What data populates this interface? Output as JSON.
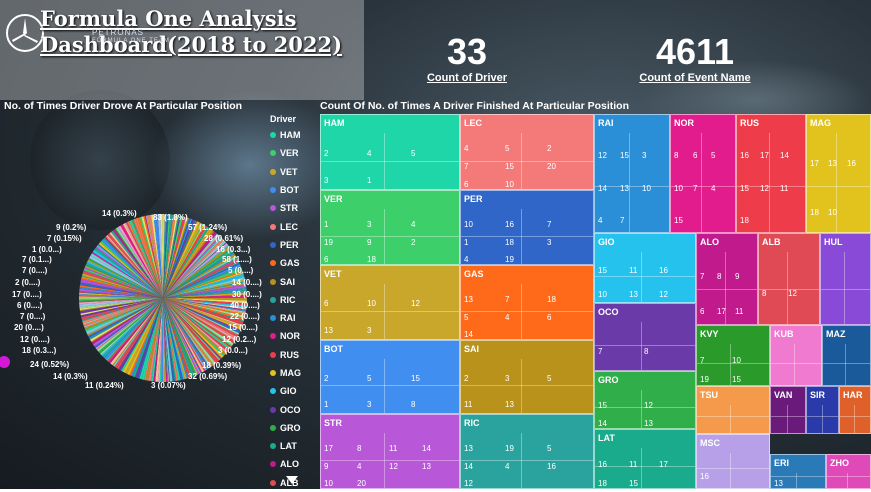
{
  "header": {
    "title": "Formula One Analysis Dashboard(2018 to 2022)",
    "logo_text_1": "PETRONAS",
    "logo_text_2": "FORMULA ONE TEAM"
  },
  "kpis": [
    {
      "value": "33",
      "label": "Count of Driver"
    },
    {
      "value": "4611",
      "label": "Count of Event Name"
    }
  ],
  "pie": {
    "title": "No. of Times Driver Drove At Particular Position",
    "labels": [
      "14 (0.3%)",
      "83 (1.8%)",
      "9 (0.2%)",
      "57 (1.24%)",
      "7 (0.15%)",
      "28 (0.61%)",
      "1 (0.0...)",
      "16 (0.3...)",
      "7 (0.1...)",
      "58 (1....)",
      "7 (0....)",
      "5 (0....)",
      "2 (0....)",
      "14 (0....)",
      "17 (0....)",
      "30 (0....)",
      "6 (0....)",
      "40 (0....)",
      "7 (0....)",
      "22 (0....)",
      "20 (0....)",
      "15 (0....)",
      "12 (0....)",
      "12 (0.2...)",
      "18 (0.3...)",
      "3 (0.0...)",
      "24 (0.52%)",
      "18 (0.39%)",
      "14 (0.3%)",
      "32 (0.69%)",
      "11 (0.24%)",
      "3 (0.07%)"
    ]
  },
  "legend": {
    "title": "Driver",
    "items": [
      {
        "name": "HAM",
        "color": "#1fd6a8"
      },
      {
        "name": "VER",
        "color": "#3ccf6a"
      },
      {
        "name": "VET",
        "color": "#c9a72a"
      },
      {
        "name": "BOT",
        "color": "#3f8ef0"
      },
      {
        "name": "STR",
        "color": "#b857d8"
      },
      {
        "name": "LEC",
        "color": "#f47a7a"
      },
      {
        "name": "PER",
        "color": "#2f66c8"
      },
      {
        "name": "GAS",
        "color": "#ff6a1a"
      },
      {
        "name": "SAI",
        "color": "#b8921a"
      },
      {
        "name": "RIC",
        "color": "#2aa39e"
      },
      {
        "name": "RAI",
        "color": "#2b8fd8"
      },
      {
        "name": "NOR",
        "color": "#e21c8c"
      },
      {
        "name": "RUS",
        "color": "#ee3c4a"
      },
      {
        "name": "MAG",
        "color": "#e2c21c"
      },
      {
        "name": "GIO",
        "color": "#25c2ee"
      },
      {
        "name": "OCO",
        "color": "#6a3aa8"
      },
      {
        "name": "GRO",
        "color": "#2fae4a"
      },
      {
        "name": "LAT",
        "color": "#1aab8c"
      },
      {
        "name": "ALO",
        "color": "#c01a8c"
      },
      {
        "name": "ALB",
        "color": "#e04a55"
      }
    ]
  },
  "treemap": {
    "title": "Count Of No. of Times A Driver Finished At Particular Position",
    "tiles": [
      {
        "name": "HAM",
        "color": "#1fd6a8",
        "nums": [
          "2",
          "4",
          "5",
          "3",
          "1"
        ]
      },
      {
        "name": "LEC",
        "color": "#f47a7a",
        "nums": [
          "4",
          "5",
          "2",
          "7",
          "15",
          "20",
          "6",
          "10"
        ]
      },
      {
        "name": "RAI",
        "color": "#2b8fd8",
        "nums": [
          "12",
          "15",
          "3",
          "14",
          "13",
          "10",
          "4",
          "7"
        ]
      },
      {
        "name": "NOR",
        "color": "#e21c8c",
        "nums": [
          "8",
          "6",
          "5",
          "10",
          "7",
          "4",
          "15"
        ]
      },
      {
        "name": "RUS",
        "color": "#ee3c4a",
        "nums": [
          "16",
          "17",
          "14",
          "15",
          "12",
          "11",
          "18"
        ]
      },
      {
        "name": "MAG",
        "color": "#e2c21c",
        "nums": [
          "17",
          "13",
          "16",
          "18",
          "10"
        ]
      },
      {
        "name": "VER",
        "color": "#3ccf6a",
        "nums": [
          "1",
          "3",
          "4",
          "19",
          "9",
          "2",
          "6",
          "18"
        ]
      },
      {
        "name": "PER",
        "color": "#2f66c8",
        "nums": [
          "10",
          "16",
          "7",
          "1",
          "18",
          "3",
          "4",
          "19"
        ]
      },
      {
        "name": "GIO",
        "color": "#25c2ee",
        "nums": [
          "15",
          "11",
          "16",
          "10",
          "13",
          "12"
        ]
      },
      {
        "name": "ALO",
        "color": "#c01a8c",
        "nums": [
          "7",
          "8",
          "9",
          "6",
          "17",
          "11"
        ]
      },
      {
        "name": "ALB",
        "color": "#e04a55",
        "nums": [
          "8",
          "12"
        ]
      },
      {
        "name": "HUL",
        "color": "#8a4ad8",
        "nums": []
      },
      {
        "name": "VET",
        "color": "#c9a72a",
        "nums": [
          "6",
          "10",
          "12",
          "13",
          "3"
        ]
      },
      {
        "name": "GAS",
        "color": "#ff6a1a",
        "nums": [
          "13",
          "7",
          "18",
          "5",
          "4",
          "6",
          "14"
        ]
      },
      {
        "name": "OCO",
        "color": "#6a3aa8",
        "nums": [
          "7",
          "8"
        ]
      },
      {
        "name": "KVY",
        "color": "#2a9a2a",
        "nums": [
          "7",
          "10",
          "19",
          "15"
        ]
      },
      {
        "name": "KUB",
        "color": "#f07ad0",
        "nums": []
      },
      {
        "name": "MAZ",
        "color": "#1a5a9a",
        "nums": []
      },
      {
        "name": "BOT",
        "color": "#3f8ef0",
        "nums": [
          "2",
          "5",
          "15",
          "1",
          "3",
          "8"
        ]
      },
      {
        "name": "SAI",
        "color": "#b8921a",
        "nums": [
          "2",
          "3",
          "5",
          "11",
          "13"
        ]
      },
      {
        "name": "GRO",
        "color": "#2fae4a",
        "nums": [
          "15",
          "12",
          "14",
          "13"
        ]
      },
      {
        "name": "TSU",
        "color": "#f59a4a",
        "nums": []
      },
      {
        "name": "VAN",
        "color": "#6a1a7a",
        "nums": []
      },
      {
        "name": "SIR",
        "color": "#2a3aa8",
        "nums": []
      },
      {
        "name": "HAR",
        "color": "#e0602a",
        "nums": []
      },
      {
        "name": "STR",
        "color": "#b857d8",
        "nums": [
          "17",
          "8",
          "11",
          "14",
          "9",
          "4",
          "12",
          "13",
          "10",
          "20"
        ]
      },
      {
        "name": "RIC",
        "color": "#2aa39e",
        "nums": [
          "13",
          "19",
          "5",
          "14",
          "4",
          "16",
          "12"
        ]
      },
      {
        "name": "LAT",
        "color": "#1aab8c",
        "nums": [
          "16",
          "11",
          "17",
          "18",
          "15"
        ]
      },
      {
        "name": "MSC",
        "color": "#b8a0e8",
        "nums": [
          "16"
        ]
      },
      {
        "name": "ERI",
        "color": "#2a7ab8",
        "nums": [
          "13"
        ]
      },
      {
        "name": "ZHO",
        "color": "#e04ab8",
        "nums": []
      }
    ]
  }
}
